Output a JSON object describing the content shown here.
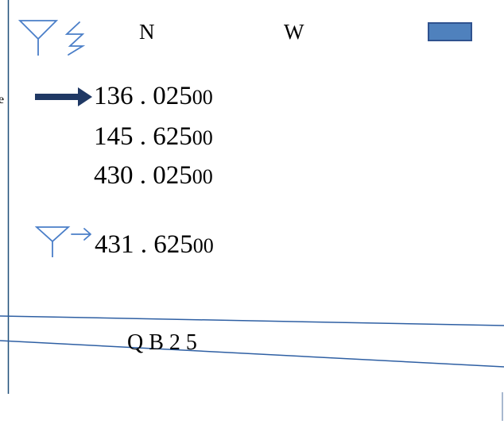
{
  "status_bar": {
    "antenna_icon": "antenna-icon",
    "signal_icon": "lightning-icon",
    "left_label": "N",
    "right_label": "W",
    "battery_icon": "battery-icon",
    "colors": {
      "antenna": "#4a7ec8",
      "battery_fill": "#4f81bd",
      "battery_border": "#2f528f"
    }
  },
  "channel_list": {
    "selector_icon": "arrow-right-icon",
    "selector_color": "#1f3864",
    "channels": [
      {
        "main": "136 . 025",
        "suffix": "00"
      },
      {
        "main": "145 . 625",
        "suffix": "00"
      },
      {
        "main": "430 . 025",
        "suffix": "00"
      }
    ]
  },
  "transmit_channel": {
    "tx_icon": "antenna-arrow-icon",
    "main": "431 . 625",
    "suffix": "00"
  },
  "callsign_bar": {
    "text": "Q B 2 5"
  },
  "stray_text": "e"
}
